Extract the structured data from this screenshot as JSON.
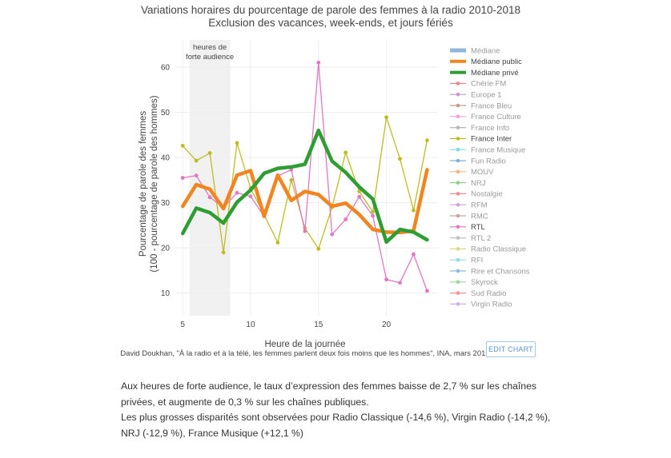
{
  "chart_data": {
    "type": "line",
    "title": "Variations horaires du pourcentage de parole des femmes à la radio 2010-2018",
    "subtitle": "Exclusion des vacances, week-ends, et jours fériés",
    "xlabel": "Heure de la journée",
    "ylabel_line1": "Pourcentage de parole des femmes",
    "ylabel_line2": "(100 - pourcentage de parole des hommes)",
    "xlim": [
      4.4,
      23.8
    ],
    "ylim": [
      5,
      66
    ],
    "xticks": [
      5,
      10,
      15,
      20
    ],
    "yticks": [
      10,
      20,
      30,
      40,
      50,
      60
    ],
    "grid": true,
    "shaded_region": {
      "x0": 5.5,
      "x1": 8.5,
      "label_line1": "heures de",
      "label_line2": "forte audience"
    },
    "legend_position": "right",
    "legend": [
      {
        "name": "Médiane",
        "color": "#8fb7dc",
        "kind": "bar",
        "highlight": false
      },
      {
        "name": "Médiane public",
        "color": "#f28520",
        "kind": "thick",
        "highlight": true
      },
      {
        "name": "Médiane privé",
        "color": "#2e9e33",
        "kind": "thick",
        "highlight": true
      },
      {
        "name": "Chérie FM",
        "color": "#e88a8a",
        "kind": "marker",
        "highlight": false
      },
      {
        "name": "Europe 1",
        "color": "#c39ad8",
        "kind": "marker",
        "highlight": false
      },
      {
        "name": "France Bleu",
        "color": "#c49c94",
        "kind": "marker",
        "highlight": false
      },
      {
        "name": "France Culture",
        "color": "#eda2d6",
        "kind": "marker",
        "highlight": false
      },
      {
        "name": "France Info",
        "color": "#b5b5b5",
        "kind": "marker",
        "highlight": false
      },
      {
        "name": "France Inter",
        "color": "#bdbd22",
        "kind": "marker",
        "highlight": true
      },
      {
        "name": "France Musique",
        "color": "#7fdbe5",
        "kind": "marker",
        "highlight": false
      },
      {
        "name": "Fun Radio",
        "color": "#7fb1da",
        "kind": "marker",
        "highlight": false
      },
      {
        "name": "MOUV",
        "color": "#f5b57c",
        "kind": "marker",
        "highlight": false
      },
      {
        "name": "NRJ",
        "color": "#8fd18f",
        "kind": "marker",
        "highlight": false
      },
      {
        "name": "Nostalgie",
        "color": "#ee8f8f",
        "kind": "marker",
        "highlight": false
      },
      {
        "name": "RFM",
        "color": "#c8a6dd",
        "kind": "marker",
        "highlight": false
      },
      {
        "name": "RMC",
        "color": "#c8a6a0",
        "kind": "marker",
        "highlight": false
      },
      {
        "name": "RTL",
        "color": "#e377c2",
        "kind": "marker",
        "highlight": true
      },
      {
        "name": "RTL 2",
        "color": "#c0c0c0",
        "kind": "marker",
        "highlight": false
      },
      {
        "name": "Radio Classique",
        "color": "#d9d98c",
        "kind": "marker",
        "highlight": false
      },
      {
        "name": "RFI",
        "color": "#8fdde7",
        "kind": "marker",
        "highlight": false
      },
      {
        "name": "Rire et Chansons",
        "color": "#8fbbe0",
        "kind": "marker",
        "highlight": false
      },
      {
        "name": "Skyrock",
        "color": "#9cd69c",
        "kind": "marker",
        "highlight": false
      },
      {
        "name": "Sud Radio",
        "color": "#f09494",
        "kind": "marker",
        "highlight": false
      },
      {
        "name": "Virgin Radio",
        "color": "#cdb0e0",
        "kind": "marker",
        "highlight": false
      }
    ],
    "series": [
      {
        "name": "France Inter",
        "color": "#bdbd22",
        "width": 1.3,
        "markers": true,
        "x": [
          5,
          6,
          7,
          8,
          9,
          10,
          11,
          12,
          13,
          14,
          15,
          16,
          17,
          18,
          19,
          20,
          21,
          22,
          23
        ],
        "y": [
          42.6,
          39.3,
          41.0,
          19.0,
          43.2,
          33.2,
          27.3,
          21.2,
          35.0,
          24.4,
          19.8,
          29.0,
          41.1,
          32.5,
          28.0,
          48.9,
          39.7,
          28.3,
          43.8
        ]
      },
      {
        "name": "RTL",
        "color": "#e377c2",
        "width": 1.3,
        "markers": true,
        "x": [
          5,
          6,
          7,
          8,
          9,
          10,
          11,
          12,
          13,
          14,
          15,
          16,
          17,
          18,
          19,
          20,
          21,
          22,
          23
        ],
        "y": [
          35.5,
          36.0,
          31.2,
          28.9,
          32.2,
          31.4,
          27.0,
          35.9,
          37.3,
          23.7,
          61.0,
          23.0,
          26.3,
          31.3,
          27.1,
          13.0,
          12.3,
          18.6,
          10.5
        ]
      },
      {
        "name": "Médiane public",
        "color": "#f28520",
        "width": 4.5,
        "markers": false,
        "x": [
          5,
          6,
          7,
          8,
          9,
          10,
          11,
          12,
          13,
          14,
          15,
          16,
          17,
          18,
          19,
          20,
          21,
          22,
          23
        ],
        "y": [
          29.2,
          34.0,
          33.0,
          28.7,
          36.1,
          37.1,
          27.0,
          36.1,
          30.5,
          32.5,
          31.8,
          29.2,
          29.9,
          27.4,
          24.1,
          23.5,
          23.4,
          23.8,
          37.3
        ]
      },
      {
        "name": "Médiane privé",
        "color": "#2e9e33",
        "width": 4.5,
        "markers": false,
        "x": [
          5,
          6,
          7,
          8,
          9,
          10,
          11,
          12,
          13,
          14,
          15,
          16,
          17,
          18,
          19,
          20,
          21,
          22,
          23
        ],
        "y": [
          23.2,
          28.8,
          27.8,
          25.5,
          30.1,
          32.8,
          36.5,
          37.6,
          37.9,
          38.5,
          46.0,
          39.2,
          36.7,
          33.5,
          30.8,
          21.3,
          24.1,
          23.5,
          21.8
        ]
      }
    ]
  },
  "credit": "David Doukhan, \"À la radio et à la télé, les femmes parlent deux fois moins que les hommes\", INA, mars 2019",
  "edit_chart_label": "EDIT CHART",
  "caption": {
    "line1": "Aux heures de forte audience, le taux d’expression des femmes baisse de 2,7 % sur les chaînes privées, et augmente de 0,3 % sur les chaînes publiques.",
    "line2": "Les plus grosses disparités sont observées pour Radio Classique (-14,6 %), Virgin Radio (-14,2 %), NRJ (-12,9 %), France Musique (+12,1 %)"
  }
}
